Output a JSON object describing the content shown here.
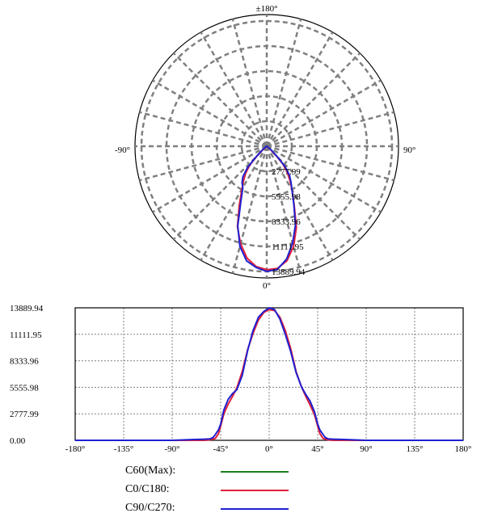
{
  "chart_data": [
    {
      "type": "polar",
      "angle_labels": {
        "top": "±180°",
        "left": "-90°",
        "right": "90°",
        "bottom": "0°"
      },
      "radial_ticks": [
        "2777.99",
        "5555.98",
        "8333.96",
        "11111.95",
        "13889.94"
      ],
      "radial_max": 13889.94,
      "grid": true,
      "series": [
        {
          "name": "C0/C180",
          "color": "#e0203a",
          "angles": [
            -180,
            -90,
            -70,
            -60,
            -55,
            -50,
            -47,
            -45,
            -42,
            -38,
            -34,
            -30,
            -25,
            -20,
            -15,
            -10,
            -5,
            0,
            5,
            10,
            15,
            20,
            25,
            30,
            34,
            38,
            42,
            45,
            47,
            50,
            55,
            60,
            70,
            90,
            180
          ],
          "values": [
            0,
            0,
            0,
            0,
            50,
            200,
            700,
            1500,
            2800,
            3800,
            4600,
            5500,
            7200,
            9500,
            11200,
            12600,
            13400,
            13700,
            13600,
            12900,
            11500,
            9600,
            7200,
            5600,
            4600,
            3700,
            2700,
            1500,
            700,
            200,
            40,
            0,
            0,
            0,
            0
          ]
        },
        {
          "name": "C90/C270",
          "color": "#2020d0",
          "angles": [
            -180,
            -90,
            -70,
            -60,
            -55,
            -52,
            -50,
            -47,
            -45,
            -42,
            -38,
            -34,
            -30,
            -25,
            -20,
            -15,
            -10,
            -5,
            0,
            5,
            10,
            15,
            20,
            25,
            30,
            34,
            38,
            42,
            45,
            47,
            50,
            52,
            55,
            60,
            70,
            90,
            180
          ],
          "values": [
            0,
            0,
            80,
            120,
            150,
            300,
            600,
            1100,
            1700,
            3200,
            4300,
            4900,
            5300,
            6800,
            9400,
            11500,
            12900,
            13500,
            13889.94,
            13700,
            12700,
            11100,
            9300,
            7100,
            5600,
            4800,
            4100,
            3000,
            1700,
            1100,
            600,
            300,
            150,
            120,
            80,
            0,
            0
          ]
        }
      ]
    },
    {
      "type": "line",
      "xlim": [
        -180,
        180
      ],
      "ylim": [
        0,
        13889.94
      ],
      "x_ticks": [
        "-180°",
        "-135°",
        "-90°",
        "-45°",
        "0°",
        "45°",
        "90°",
        "135°",
        "180°"
      ],
      "y_ticks": [
        "0.00",
        "2777.99",
        "5555.98",
        "8333.96",
        "11111.95",
        "13889.94"
      ],
      "grid": true,
      "series": [
        {
          "name": "C0/C180",
          "color": "#e0203a",
          "x": [
            -180,
            -90,
            -70,
            -60,
            -55,
            -50,
            -47,
            -45,
            -42,
            -38,
            -34,
            -30,
            -25,
            -20,
            -15,
            -10,
            -5,
            0,
            5,
            10,
            15,
            20,
            25,
            30,
            34,
            38,
            42,
            45,
            47,
            50,
            55,
            60,
            70,
            90,
            180
          ],
          "y": [
            0,
            0,
            0,
            0,
            50,
            200,
            700,
            1500,
            2800,
            3800,
            4600,
            5500,
            7200,
            9500,
            11200,
            12600,
            13400,
            13700,
            13600,
            12900,
            11500,
            9600,
            7200,
            5600,
            4600,
            3700,
            2700,
            1500,
            700,
            200,
            40,
            0,
            0,
            0,
            0
          ]
        },
        {
          "name": "C90/C270",
          "color": "#2020d0",
          "x": [
            -180,
            -90,
            -70,
            -60,
            -55,
            -52,
            -50,
            -47,
            -45,
            -42,
            -38,
            -34,
            -30,
            -25,
            -20,
            -15,
            -10,
            -5,
            0,
            5,
            10,
            15,
            20,
            25,
            30,
            34,
            38,
            42,
            45,
            47,
            50,
            52,
            55,
            60,
            70,
            90,
            180
          ],
          "y": [
            0,
            0,
            80,
            120,
            150,
            300,
            600,
            1100,
            1700,
            3200,
            4300,
            4900,
            5300,
            6800,
            9400,
            11500,
            12900,
            13500,
            13889.94,
            13700,
            12700,
            11100,
            9300,
            7100,
            5600,
            4800,
            4100,
            3000,
            1700,
            1100,
            600,
            300,
            150,
            120,
            80,
            0,
            0
          ]
        }
      ]
    }
  ],
  "legend": [
    {
      "label": "C60(Max):",
      "color": "#1a7f1a"
    },
    {
      "label": "C0/C180:",
      "color": "#e0203a"
    },
    {
      "label": "C90/C270:",
      "color": "#2020d0"
    }
  ]
}
